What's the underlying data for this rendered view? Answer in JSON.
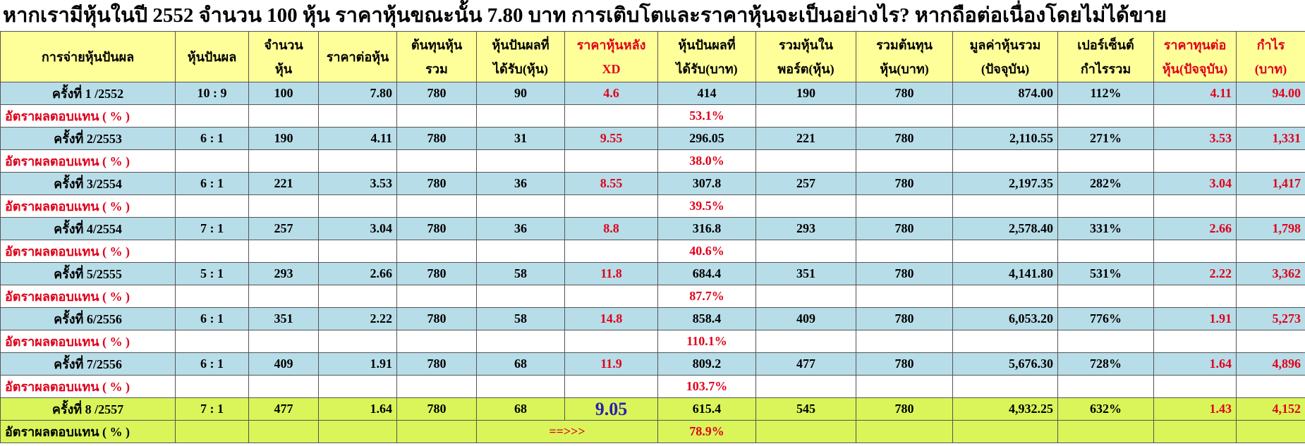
{
  "title": "หากเรามีหุ้นในปี 2552 จำนวน 100 หุ้น ราคาหุ้นขณะนั้น 7.80 บาท การเติบโตและราคาหุ้นจะเป็นอย่างไร? หากถือต่อเนื่องโดยไม่ได้ขาย",
  "table": {
    "headers": [
      [
        "การจ่ายหุ้นปันผล"
      ],
      [
        "หุ้นปันผล"
      ],
      [
        "จำนวน",
        "หุ้น"
      ],
      [
        "ราคาต่อหุ้น"
      ],
      [
        "ต้นทุนหุ้น",
        "รวม"
      ],
      [
        "หุ้นปันผลที่",
        "ได้รับ(หุ้น)"
      ],
      [
        "ราคาหุ้นหลัง",
        "XD"
      ],
      [
        "หุ้นปันผลที่",
        "ได้รับ(บาท)"
      ],
      [
        "รวมหุ้นใน",
        "พอร์ต(หุ้น)"
      ],
      [
        "รวมต้นทุน",
        "หุ้น(บาท)"
      ],
      [
        "มูลค่าหุ้นรวม",
        "(ปัจจุบัน)"
      ],
      [
        "เปอร์เซ็นต์",
        "กำไรรวม"
      ],
      [
        "ราคาทุนต่อ",
        "หุ้น(ปัจจุบัน)"
      ],
      [
        "กำไร",
        "(บาท)"
      ]
    ],
    "rows": [
      {
        "cells": [
          "ครั้งที่ 1 /2552",
          "10 : 9",
          "100",
          "7.80",
          "780",
          "90",
          "4.6",
          "414",
          "190",
          "780",
          "874.00",
          "112%",
          "4.11",
          "94.00"
        ],
        "yield_label": "อัตราผลตอบแทน ( % )",
        "yield": "53.1%"
      },
      {
        "cells": [
          "ครั้งที่ 2/2553",
          "6 : 1",
          "190",
          "4.11",
          "780",
          "31",
          "9.55",
          "296.05",
          "221",
          "780",
          "2,110.55",
          "271%",
          "3.53",
          "1,331"
        ],
        "yield_label": "อัตราผลตอบแทน ( % )",
        "yield": "38.0%"
      },
      {
        "cells": [
          "ครั้งที่ 3/2554",
          "6 : 1",
          "221",
          "3.53",
          "780",
          "36",
          "8.55",
          "307.8",
          "257",
          "780",
          "2,197.35",
          "282%",
          "3.04",
          "1,417"
        ],
        "yield_label": "อัตราผลตอบแทน ( % )",
        "yield": "39.5%"
      },
      {
        "cells": [
          "ครั้งที่ 4/2554",
          "7 : 1",
          "257",
          "3.04",
          "780",
          "36",
          "8.8",
          "316.8",
          "293",
          "780",
          "2,578.40",
          "331%",
          "2.66",
          "1,798"
        ],
        "yield_label": "อัตราผลตอบแทน ( % )",
        "yield": "40.6%"
      },
      {
        "cells": [
          "ครั้งที่ 5/2555",
          "5 : 1",
          "293",
          "2.66",
          "780",
          "58",
          "11.8",
          "684.4",
          "351",
          "780",
          "4,141.80",
          "531%",
          "2.22",
          "3,362"
        ],
        "yield_label": "อัตราผลตอบแทน ( % )",
        "yield": "87.7%"
      },
      {
        "cells": [
          "ครั้งที่ 6/2556",
          "6 : 1",
          "351",
          "2.22",
          "780",
          "58",
          "14.8",
          "858.4",
          "409",
          "780",
          "6,053.20",
          "776%",
          "1.91",
          "5,273"
        ],
        "yield_label": "อัตราผลตอบแทน ( % )",
        "yield": "110.1%"
      },
      {
        "cells": [
          "ครั้งที่ 7/2556",
          "6 : 1",
          "409",
          "1.91",
          "780",
          "68",
          "11.9",
          "809.2",
          "477",
          "780",
          "5,676.30",
          "728%",
          "1.64",
          "4,896"
        ],
        "yield_label": "อัตราผลตอบแทน ( % )",
        "yield": "103.7%"
      },
      {
        "cells": [
          "ครั้งที่ 8 /2557",
          "7 : 1",
          "477",
          "1.64",
          "780",
          "68",
          "9.05",
          "615.4",
          "545",
          "780",
          "4,932.25",
          "632%",
          "1.43",
          "4,152"
        ],
        "yield_label": "อัตราผลตอบแทน ( % )",
        "yield": "78.9%",
        "arrow": "==>>>"
      }
    ]
  }
}
